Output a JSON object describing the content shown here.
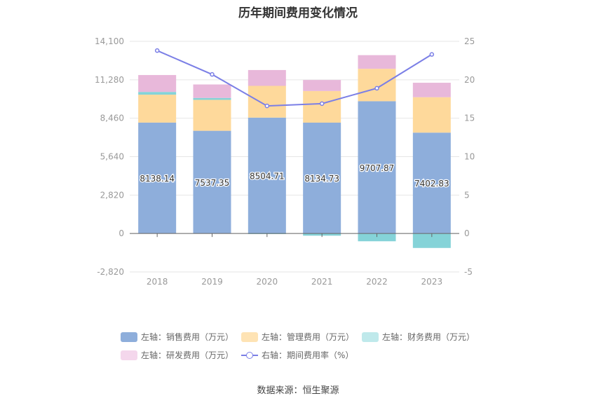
{
  "chart_data": {
    "type": "bar",
    "title": "历年期间费用变化情况",
    "categories": [
      "2018",
      "2019",
      "2020",
      "2021",
      "2022",
      "2023"
    ],
    "left_axis": {
      "ticks": [
        "14,100",
        "11,280",
        "8,460",
        "5,640",
        "2,820",
        "0",
        "-2,820"
      ],
      "min": -2820,
      "max": 14100
    },
    "right_axis": {
      "ticks": [
        "25",
        "20",
        "15",
        "10",
        "5",
        "0",
        "-5"
      ],
      "min": -5,
      "max": 25
    },
    "series": [
      {
        "name": "左轴：销售费用（万元）",
        "type": "bar",
        "stack": "cost",
        "color": "#8eaedb",
        "values": [
          8138.14,
          7537.35,
          8504.71,
          8134.73,
          9707.87,
          7402.83
        ],
        "labels": [
          "8138.14",
          "7537.35",
          "8504.71",
          "8134.73",
          "9707.87",
          "7402.83"
        ]
      },
      {
        "name": "左轴：管理费用（万元）",
        "type": "bar",
        "stack": "cost",
        "color": "#fed99b",
        "values": [
          2050,
          2270,
          2330,
          2320,
          2380,
          2600
        ]
      },
      {
        "name": "左轴：财务费用（万元）",
        "type": "bar",
        "stack": "cost",
        "color": "#85d3d8",
        "values": [
          200,
          140,
          -40,
          -160,
          -570,
          -1060
        ]
      },
      {
        "name": "左轴：研发费用（万元）",
        "type": "bar",
        "stack": "cost",
        "color": "#e8b8da",
        "values": [
          1240,
          990,
          1160,
          810,
          1000,
          1060
        ]
      },
      {
        "name": "右轴：期间费用率（%）",
        "type": "line",
        "axis": "right",
        "color": "#7b7fe6",
        "values": [
          23.8,
          20.7,
          16.6,
          16.9,
          18.9,
          23.3
        ]
      }
    ],
    "legend_position": "bottom",
    "grid": true
  },
  "legend": {
    "sales": "左轴：销售费用（万元）",
    "admin": "左轴：管理费用（万元）",
    "finance": "左轴：财务费用（万元）",
    "rd": "左轴：研发费用（万元）",
    "rate": "右轴：期间费用率（%）"
  },
  "legend_colors": {
    "sales": "#8eaedb",
    "admin": "#fee3b4",
    "finance": "#bfe9eb",
    "rd": "#f4d7ec"
  },
  "source": "数据来源：恒生聚源"
}
